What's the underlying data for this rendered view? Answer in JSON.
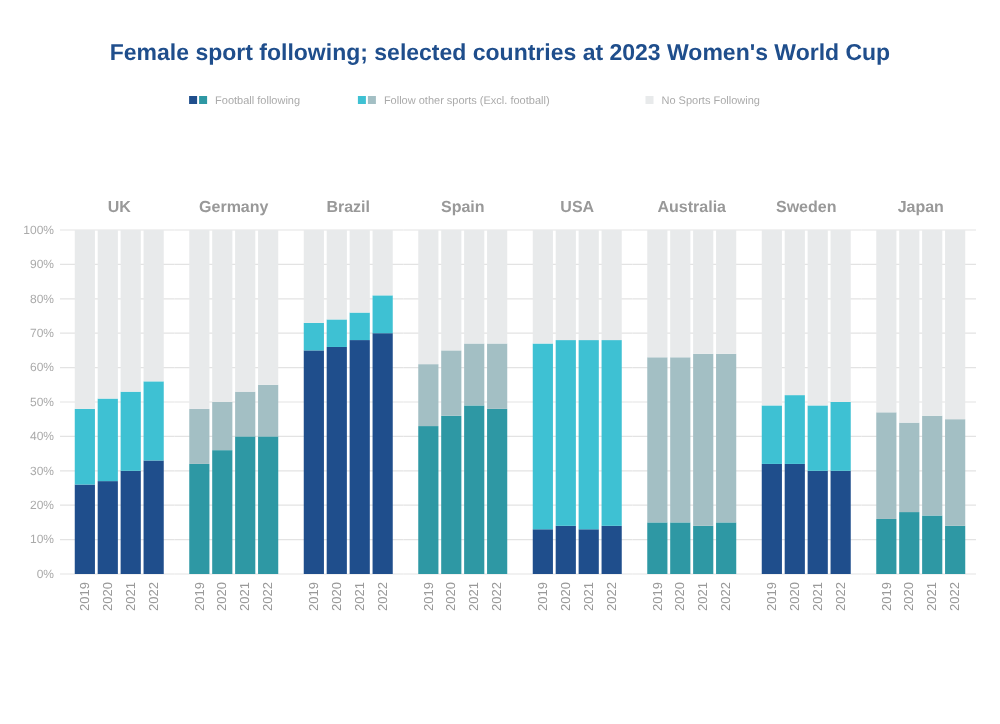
{
  "chart_data": [
    {
      "type": "bar",
      "stacked": true,
      "title": "Female sport following; selected countries at 2023 Women's World Cup",
      "subtitle": "UK",
      "legend": "top",
      "grid": "y",
      "categories": [
        "2019",
        "2020",
        "2021",
        "2022"
      ],
      "ylim": [
        0,
        100
      ],
      "yticks": [
        {
          "value": 0,
          "label": "0%"
        },
        {
          "value": 10,
          "label": "10%"
        },
        {
          "value": 20,
          "label": "20%"
        },
        {
          "value": 30,
          "label": "30%"
        },
        {
          "value": 40,
          "label": "40%"
        },
        {
          "value": 50,
          "label": "50%"
        },
        {
          "value": 60,
          "label": "60%"
        },
        {
          "value": 70,
          "label": "70%"
        },
        {
          "value": 80,
          "label": "80%"
        },
        {
          "value": 90,
          "label": "90%"
        },
        {
          "value": 100,
          "label": "100%"
        }
      ],
      "series": [
        {
          "name": "Football following",
          "color": "#1f4e8c",
          "values": [
            26,
            27,
            30,
            33
          ]
        },
        {
          "name": "Follow other sports (Excl. football)",
          "color": "#3ec1d3",
          "values": [
            22,
            24,
            23,
            23
          ]
        },
        {
          "name": "No Sports Following",
          "color": "#e8eaeb",
          "values": [
            52,
            49,
            47,
            44
          ]
        }
      ]
    },
    {
      "type": "bar",
      "stacked": true,
      "subtitle": "Germany",
      "grid": "y",
      "tick_labels": "x",
      "categories": [
        "2019",
        "2020",
        "2021",
        "2022"
      ],
      "ylim": [
        0,
        100
      ],
      "series": [
        {
          "color": "#2e98a4",
          "values": [
            32,
            36,
            40,
            40
          ]
        },
        {
          "color": "#a3bfc4",
          "values": [
            16,
            14,
            13,
            15
          ]
        },
        {
          "color": "#e8eaeb",
          "values": [
            52,
            50,
            47,
            45
          ]
        }
      ]
    },
    {
      "type": "bar",
      "stacked": true,
      "subtitle": "Brazil",
      "grid": "y",
      "tick_labels": "x",
      "categories": [
        "2019",
        "2020",
        "2021",
        "2022"
      ],
      "ylim": [
        0,
        100
      ],
      "series": [
        {
          "color": "#1f4e8c",
          "values": [
            65,
            66,
            68,
            70
          ]
        },
        {
          "color": "#3ec1d3",
          "values": [
            8,
            8,
            8,
            11
          ]
        },
        {
          "color": "#e8eaeb",
          "values": [
            27,
            26,
            24,
            19
          ]
        }
      ]
    },
    {
      "type": "bar",
      "stacked": true,
      "subtitle": "Spain",
      "grid": "y",
      "tick_labels": "x",
      "categories": [
        "2019",
        "2020",
        "2021",
        "2022"
      ],
      "ylim": [
        0,
        100
      ],
      "series": [
        {
          "color": "#2e98a4",
          "values": [
            43,
            46,
            49,
            48
          ]
        },
        {
          "color": "#a3bfc4",
          "values": [
            18,
            19,
            18,
            19
          ]
        },
        {
          "color": "#e8eaeb",
          "values": [
            39,
            35,
            33,
            33
          ]
        }
      ]
    },
    {
      "type": "bar",
      "stacked": true,
      "subtitle": "USA",
      "grid": "y",
      "tick_labels": "x",
      "categories": [
        "2019",
        "2020",
        "2021",
        "2022"
      ],
      "ylim": [
        0,
        100
      ],
      "series": [
        {
          "color": "#1f4e8c",
          "values": [
            13,
            14,
            13,
            14
          ]
        },
        {
          "color": "#3ec1d3",
          "values": [
            54,
            54,
            55,
            54
          ]
        },
        {
          "color": "#e8eaeb",
          "values": [
            33,
            32,
            32,
            32
          ]
        }
      ]
    },
    {
      "type": "bar",
      "stacked": true,
      "subtitle": "Australia",
      "grid": "y",
      "tick_labels": "x",
      "categories": [
        "2019",
        "2020",
        "2021",
        "2022"
      ],
      "ylim": [
        0,
        100
      ],
      "series": [
        {
          "color": "#2e98a4",
          "values": [
            15,
            15,
            14,
            15
          ]
        },
        {
          "color": "#a3bfc4",
          "values": [
            48,
            48,
            50,
            49
          ]
        },
        {
          "color": "#e8eaeb",
          "values": [
            37,
            37,
            36,
            36
          ]
        }
      ]
    },
    {
      "type": "bar",
      "stacked": true,
      "subtitle": "Sweden",
      "grid": "y",
      "tick_labels": "x",
      "categories": [
        "2019",
        "2020",
        "2021",
        "2022"
      ],
      "ylim": [
        0,
        100
      ],
      "series": [
        {
          "color": "#1f4e8c",
          "values": [
            32,
            32,
            30,
            30
          ]
        },
        {
          "color": "#3ec1d3",
          "values": [
            17,
            20,
            19,
            20
          ]
        },
        {
          "color": "#e8eaeb",
          "values": [
            51,
            48,
            51,
            50
          ]
        }
      ]
    },
    {
      "type": "bar",
      "stacked": true,
      "subtitle": "Japan",
      "grid": "y",
      "tick_labels": "x",
      "categories": [
        "2019",
        "2020",
        "2021",
        "2022"
      ],
      "ylim": [
        0,
        100
      ],
      "series": [
        {
          "color": "#2e98a4",
          "values": [
            16,
            18,
            17,
            14
          ]
        },
        {
          "color": "#a3bfc4",
          "values": [
            31,
            26,
            29,
            31
          ]
        },
        {
          "color": "#e8eaeb",
          "values": [
            53,
            56,
            54,
            55
          ]
        }
      ]
    }
  ]
}
